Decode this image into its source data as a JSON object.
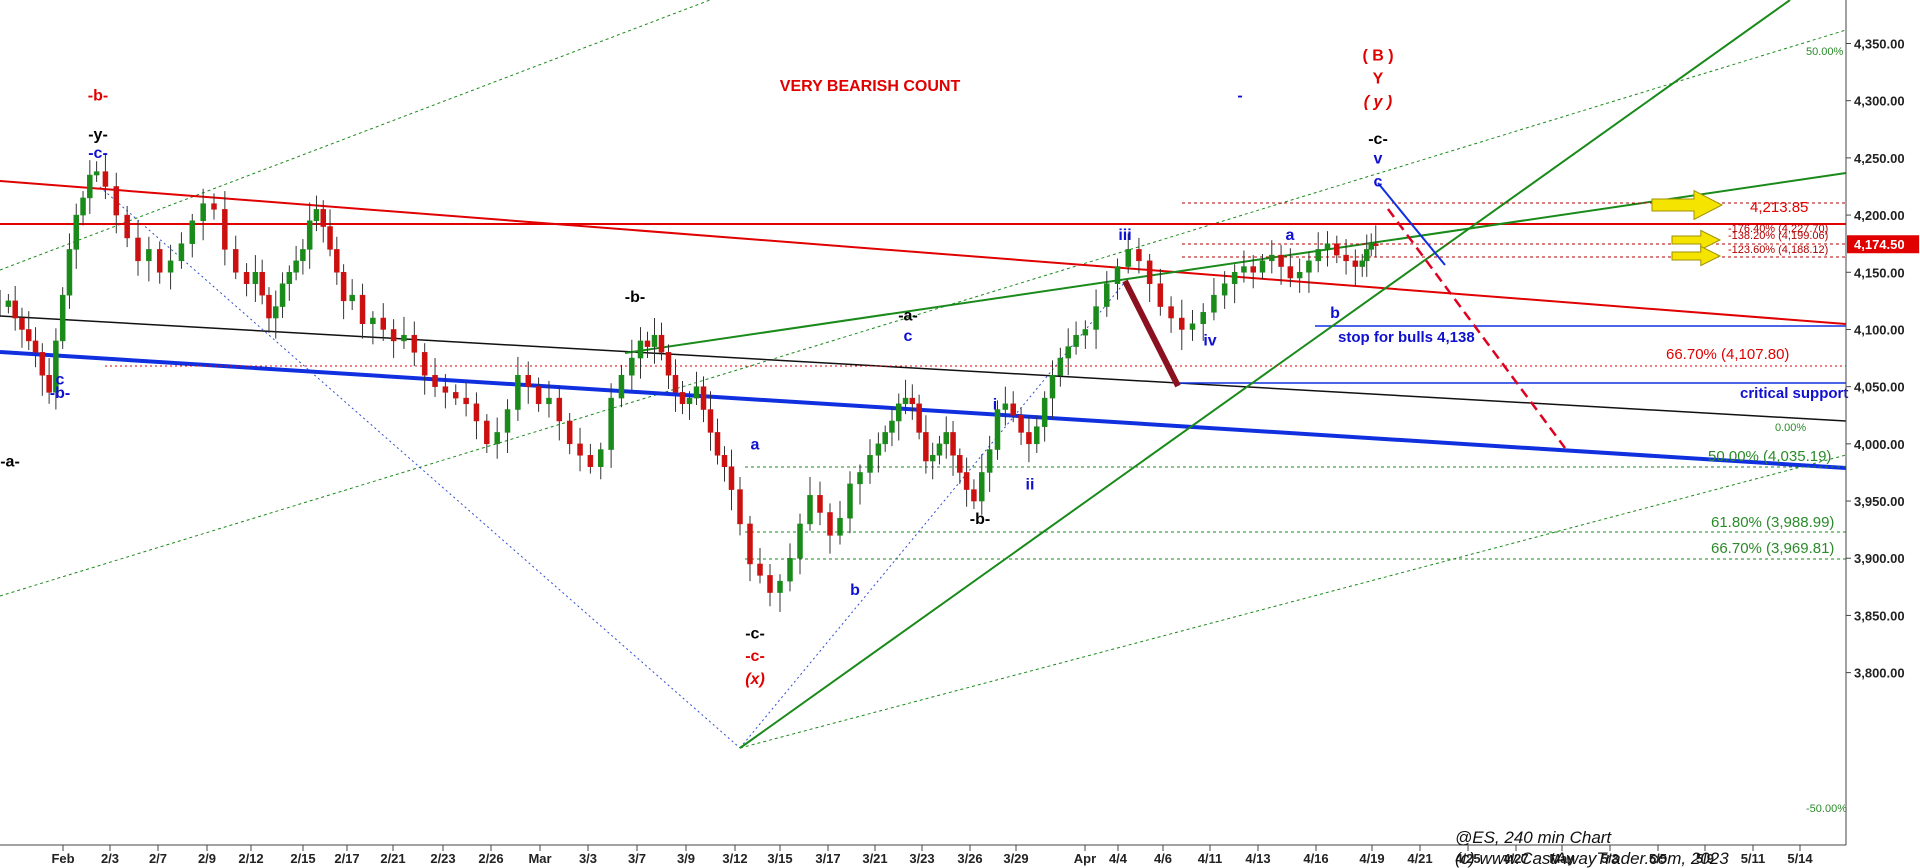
{
  "chart_data": {
    "type": "candlestick",
    "title": "VERY BEARISH COUNT",
    "symbol_label": "@ES, 240 min Chart",
    "copyright": "(c) www.CastAwayTrader.com, 2023",
    "y_range": [
      3770,
      4390
    ],
    "y_ticks": [
      "4,350.00",
      "4,300.00",
      "4,250.00",
      "4,200.00",
      "4,150.00",
      "4,100.00",
      "4,050.00",
      "4,000.00",
      "3,950.00",
      "3,900.00",
      "3,850.00",
      "3,800.00"
    ],
    "y_tick_values": [
      4350,
      4300,
      4250,
      4200,
      4150,
      4100,
      4050,
      4000,
      3950,
      3900,
      3850,
      3800
    ],
    "x_ticks": [
      "Feb",
      "2/3",
      "2/7",
      "2/9",
      "2/12",
      "2/15",
      "2/17",
      "2/21",
      "2/23",
      "2/26",
      "Mar",
      "3/3",
      "3/7",
      "3/9",
      "3/12",
      "3/15",
      "3/17",
      "3/21",
      "3/23",
      "3/26",
      "3/29",
      "Apr",
      "4/4",
      "4/6",
      "4/11",
      "4/13",
      "4/16",
      "4/19",
      "4/21",
      "4/25",
      "4/27",
      "May",
      "5/3",
      "5/5",
      "5/9",
      "5/11",
      "5/14"
    ],
    "last_price_label": "4,174.50",
    "last_price": 4174.5,
    "price_path": [
      [
        4125,
        4110,
        4100,
        4090,
        4080,
        4060,
        4045,
        4090,
        4130,
        4170,
        4200,
        4215,
        4235,
        4238
      ],
      [
        4225,
        4200,
        4180,
        4160,
        4170,
        4150,
        4160,
        4175,
        4195,
        4210,
        4205,
        4170,
        4150,
        4140
      ],
      [
        4150,
        4130,
        4110,
        4120,
        4140,
        4150,
        4160,
        4170,
        4195,
        4205,
        4190,
        4170,
        4150,
        4125
      ],
      [
        4130,
        4105,
        4110,
        4100,
        4090,
        4095,
        4080,
        4060,
        4050,
        4045,
        4040,
        4035,
        4020,
        4000
      ],
      [
        4010,
        4030,
        4060,
        4050,
        4035,
        4040,
        4020,
        4000,
        3990,
        3980,
        3995,
        4040,
        4060,
        4075
      ],
      [
        4090,
        4085,
        4095,
        4080,
        4060,
        4045,
        4035,
        4040,
        4050,
        4030,
        4010,
        3990,
        3980,
        3960
      ],
      [
        3930,
        3895,
        3885,
        3870,
        3880,
        3900,
        3930,
        3955,
        3940,
        3920,
        3935,
        3965,
        3975,
        3990
      ],
      [
        4000,
        4010,
        4020,
        4035,
        4040,
        4035,
        4010,
        3985,
        3990,
        4000,
        4010,
        3990,
        3975,
        3960
      ],
      [
        3950,
        3975,
        3995,
        4030,
        4035,
        4025,
        4010,
        4000,
        4015,
        4040,
        4060,
        4075,
        4085,
        4095
      ],
      [
        4100,
        4120,
        4140,
        4155,
        4170,
        4160,
        4140,
        4120,
        4110,
        4100,
        4105,
        4115,
        4130,
        4140
      ],
      [
        4150,
        4155,
        4150,
        4160,
        4165,
        4155,
        4145,
        4150,
        4160,
        4170,
        4175,
        4165,
        4160,
        4155
      ],
      [
        4160,
        4170,
        4175,
        4174.5
      ]
    ],
    "wave_labels": [
      {
        "text": "-b-",
        "color": "#e00000",
        "date": "2/2",
        "price": 4300
      },
      {
        "text": "-y-",
        "color": "#000000",
        "date": "2/2",
        "price": 4266
      },
      {
        "text": "-c-",
        "color": "#1010d0",
        "date": "2/2",
        "price": 4250
      },
      {
        "text": "c",
        "color": "#1010d0",
        "date": "1/31",
        "price": 4052
      },
      {
        "text": "-b-",
        "color": "#1010d0",
        "date": "1/31",
        "price": 4040
      },
      {
        "text": "-a-",
        "color": "#000000",
        "date": "2/24",
        "price": 3980
      },
      {
        "text": "-b-",
        "color": "#000000",
        "date": "3/6",
        "price": 4124
      },
      {
        "text": "-a-",
        "color": "#000000",
        "date": "3/22",
        "price": 4108
      },
      {
        "text": "c",
        "color": "#1010d0",
        "date": "3/22",
        "price": 4090
      },
      {
        "text": "a",
        "color": "#1010d0",
        "date": "3/13",
        "price": 3995
      },
      {
        "text": "b",
        "color": "#1010d0",
        "date": "3/18",
        "price": 3868
      },
      {
        "text": "i",
        "color": "#1010d0",
        "date": "3/27",
        "price": 4030
      },
      {
        "text": "ii",
        "color": "#1010d0",
        "date": "3/30",
        "price": 3960
      },
      {
        "text": "-b-",
        "color": "#000000",
        "date": "3/26",
        "price": 3930
      },
      {
        "text": "-c-",
        "color": "#000000",
        "date": "3/13",
        "price": 3830
      },
      {
        "text": "-c-",
        "color": "#e00000",
        "date": "3/13",
        "price": 3810
      },
      {
        "text": "(x)",
        "color": "#e00000",
        "date": "3/13",
        "price": 3790
      },
      {
        "text": "iii",
        "color": "#1010d0",
        "date": "4/4",
        "price": 4178
      },
      {
        "text": "iv",
        "color": "#1010d0",
        "date": "4/7",
        "price": 4086
      },
      {
        "text": "a",
        "color": "#1010d0",
        "date": "4/14",
        "price": 4178
      },
      {
        "text": "b",
        "color": "#1010d0",
        "date": "4/17",
        "price": 4110
      },
      {
        "text": "v",
        "color": "#1010d0",
        "date": "4/18",
        "price": 4245
      },
      {
        "text": "c",
        "color": "#1010d0",
        "date": "4/18",
        "price": 4225
      },
      {
        "text": "-c-",
        "color": "#000000",
        "date": "4/18",
        "price": 4262
      },
      {
        "text": "( B )",
        "color": "#e00000",
        "date": "4/18",
        "price": 4335
      },
      {
        "text": "Y",
        "color": "#e00000",
        "date": "4/18",
        "price": 4315
      },
      {
        "text": "( y )",
        "color": "#e00000",
        "date": "4/18",
        "price": 4295
      },
      {
        "text": "-",
        "color": "#1010d0",
        "date": "4/12",
        "price": 4300
      }
    ],
    "fib_levels": [
      {
        "label": "-176.40% (4,227.70)",
        "price": 4227.7,
        "color": "#b00000"
      },
      {
        "label": "4,213.85",
        "price": 4213.85,
        "color": "#e00000"
      },
      {
        "label": "-138.20% (4,199.06)",
        "price": 4199.06,
        "color": "#b00000"
      },
      {
        "label": "-123.60% (4,188.12)",
        "price": 4188.12,
        "color": "#b00000"
      },
      {
        "label": "stop for bulls 4,138",
        "price": 4138,
        "color": "#1010d0"
      },
      {
        "label": "66.70% (4,107.80)",
        "price": 4107.8,
        "color": "#e00000"
      },
      {
        "label": "critical support",
        "price": 4097,
        "color": "#1010d0"
      },
      {
        "label": "0.00%",
        "price": 4063,
        "color": "#2a8a2a"
      },
      {
        "label": "50.00% (4,035.19)",
        "price": 4035.19,
        "color": "#2a8a2a"
      },
      {
        "label": "61.80% (3,988.99)",
        "price": 3988.99,
        "color": "#2a8a2a"
      },
      {
        "label": "66.70% (3,969.81)",
        "price": 3969.81,
        "color": "#2a8a2a"
      },
      {
        "label": "50.00%",
        "price": 4344,
        "color": "#2a8a2a"
      },
      {
        "label": "-50.00%",
        "price": 3788,
        "color": "#2a8a2a"
      }
    ],
    "colors": {
      "up": "#1a8a1a",
      "down": "#cc1010",
      "red_line": "#e00000",
      "blue_line": "#1030e0",
      "green_line": "#1a8a1a",
      "black_line": "#111111",
      "maroon": "#8b1020",
      "arrow": "#f5e400"
    }
  }
}
